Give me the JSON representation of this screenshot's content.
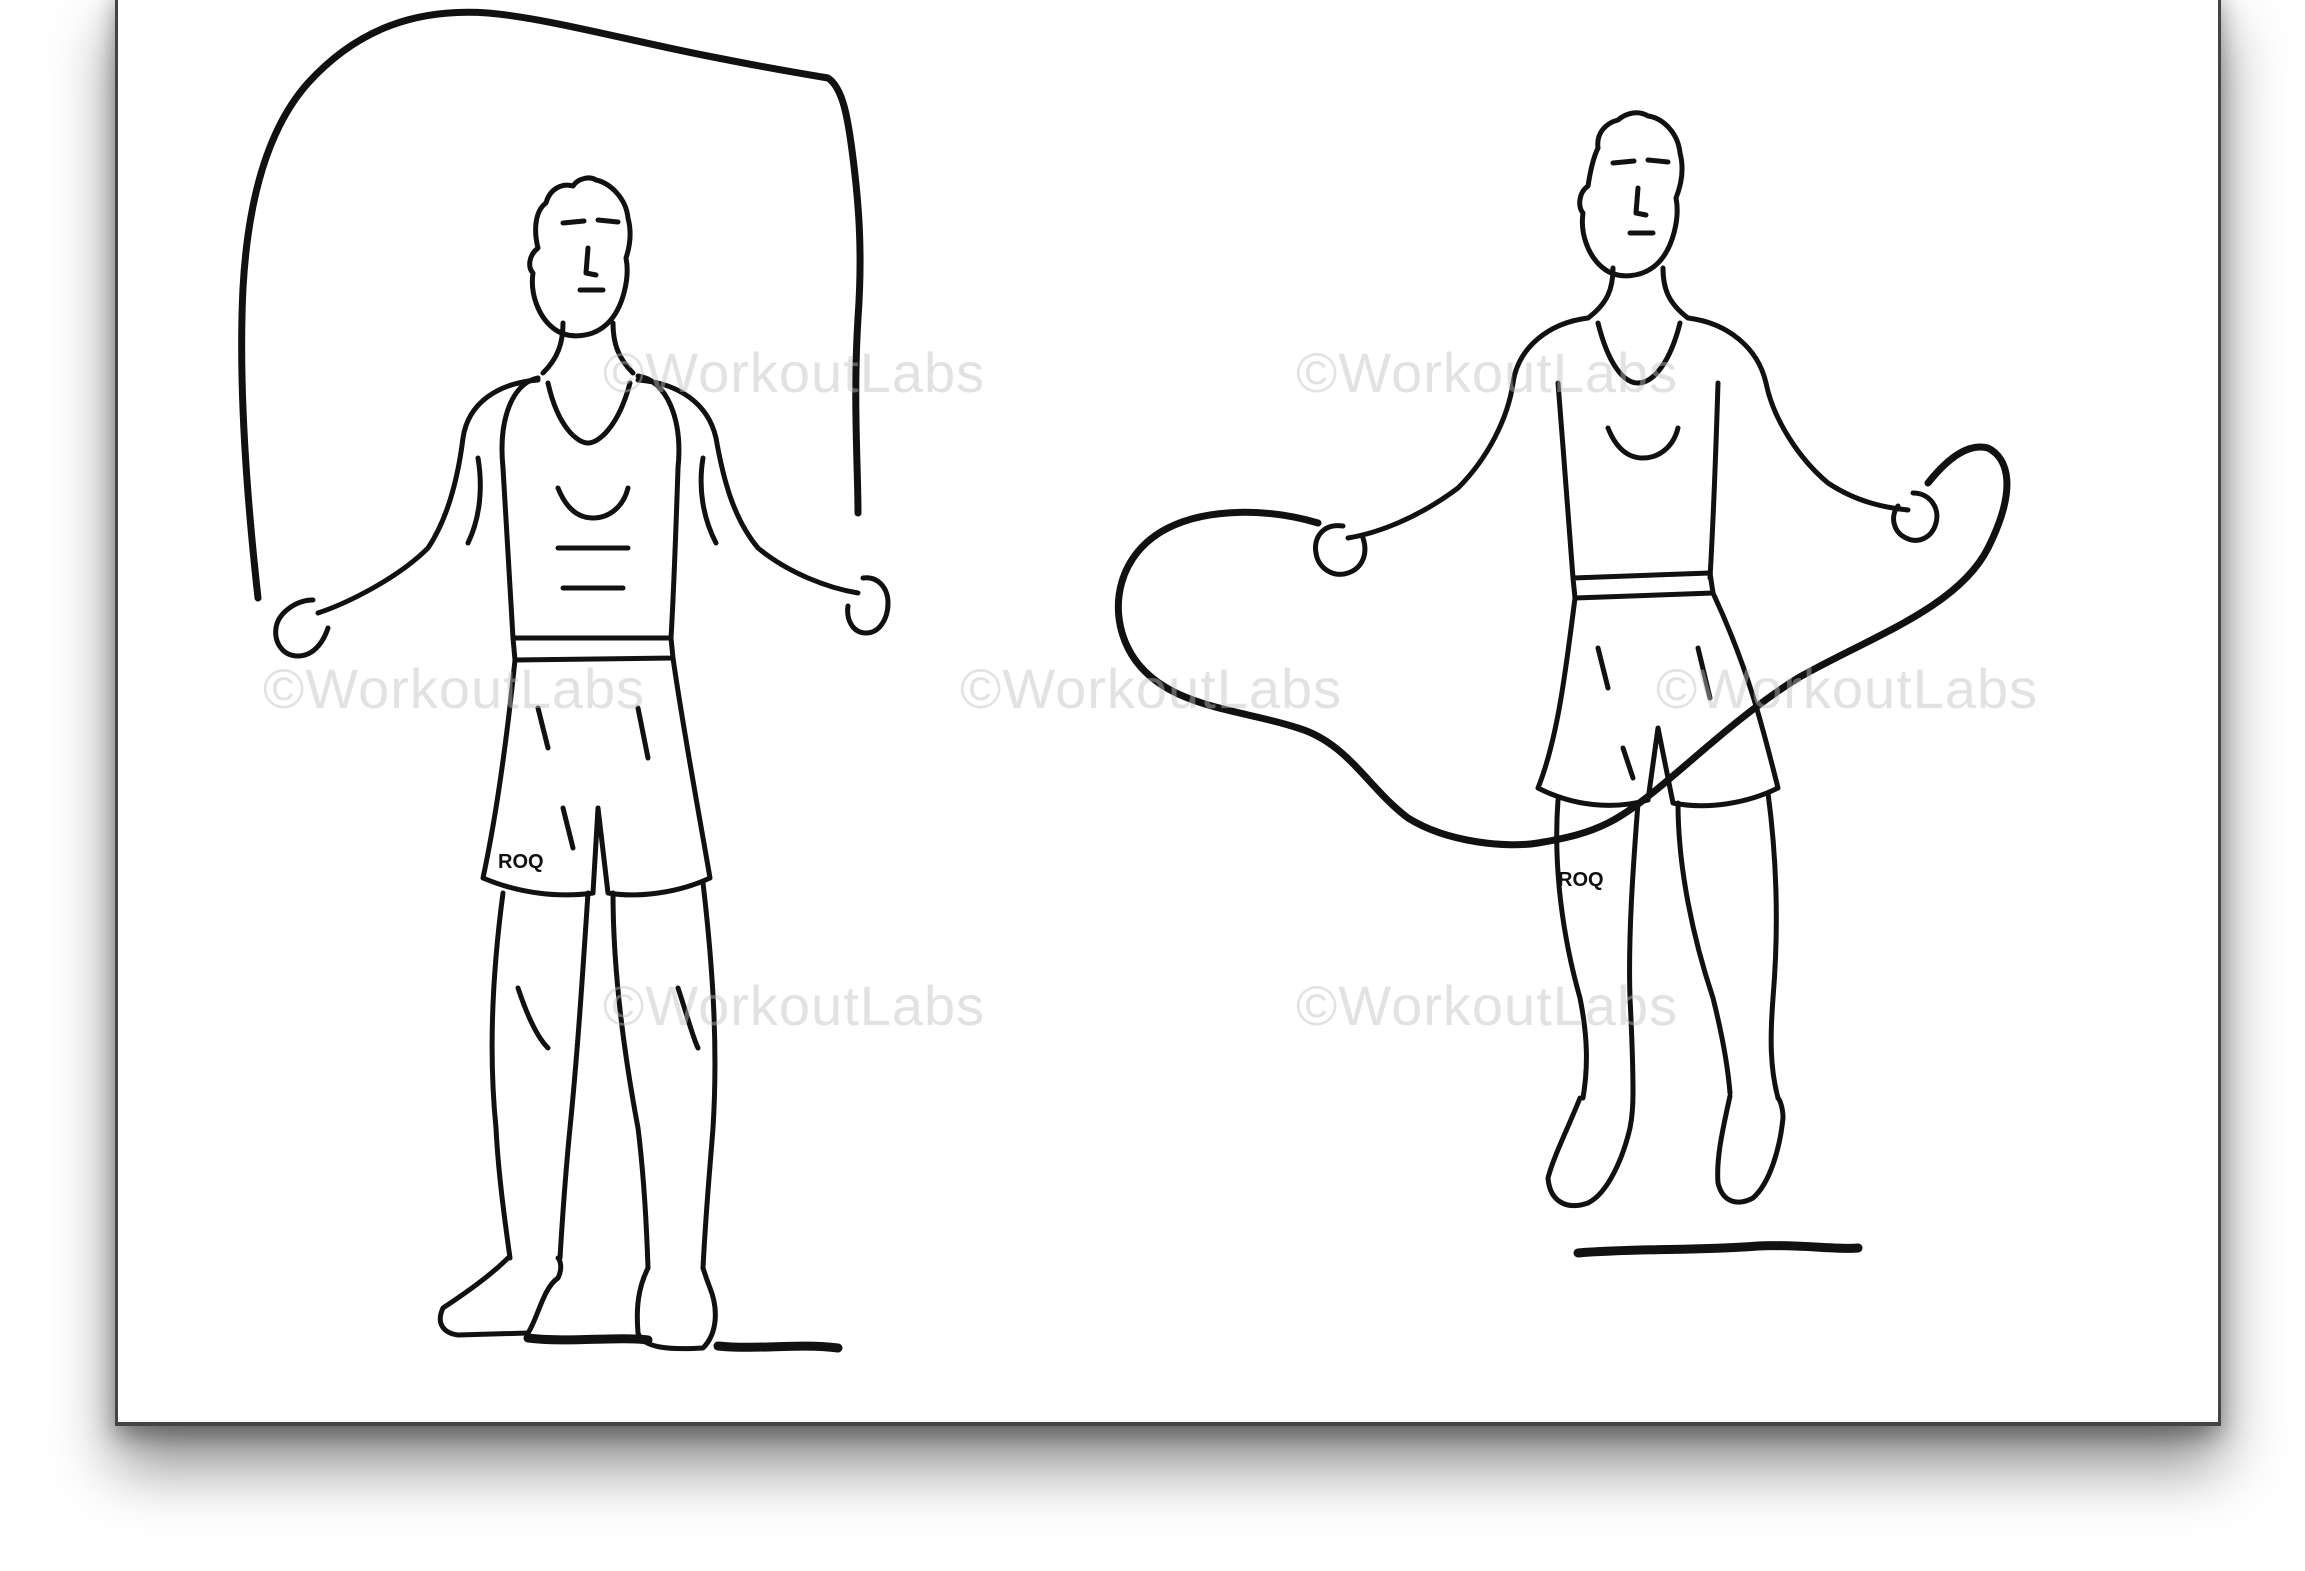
{
  "watermark_text": "©WorkoutLabs",
  "shorts_brand": "ROQ",
  "figures": [
    {
      "pose": "standing-rope-overhead"
    },
    {
      "pose": "jumping-rope-under-feet"
    }
  ],
  "colors": {
    "line": "#111111",
    "background": "#ffffff",
    "watermark": "#bebebe"
  }
}
